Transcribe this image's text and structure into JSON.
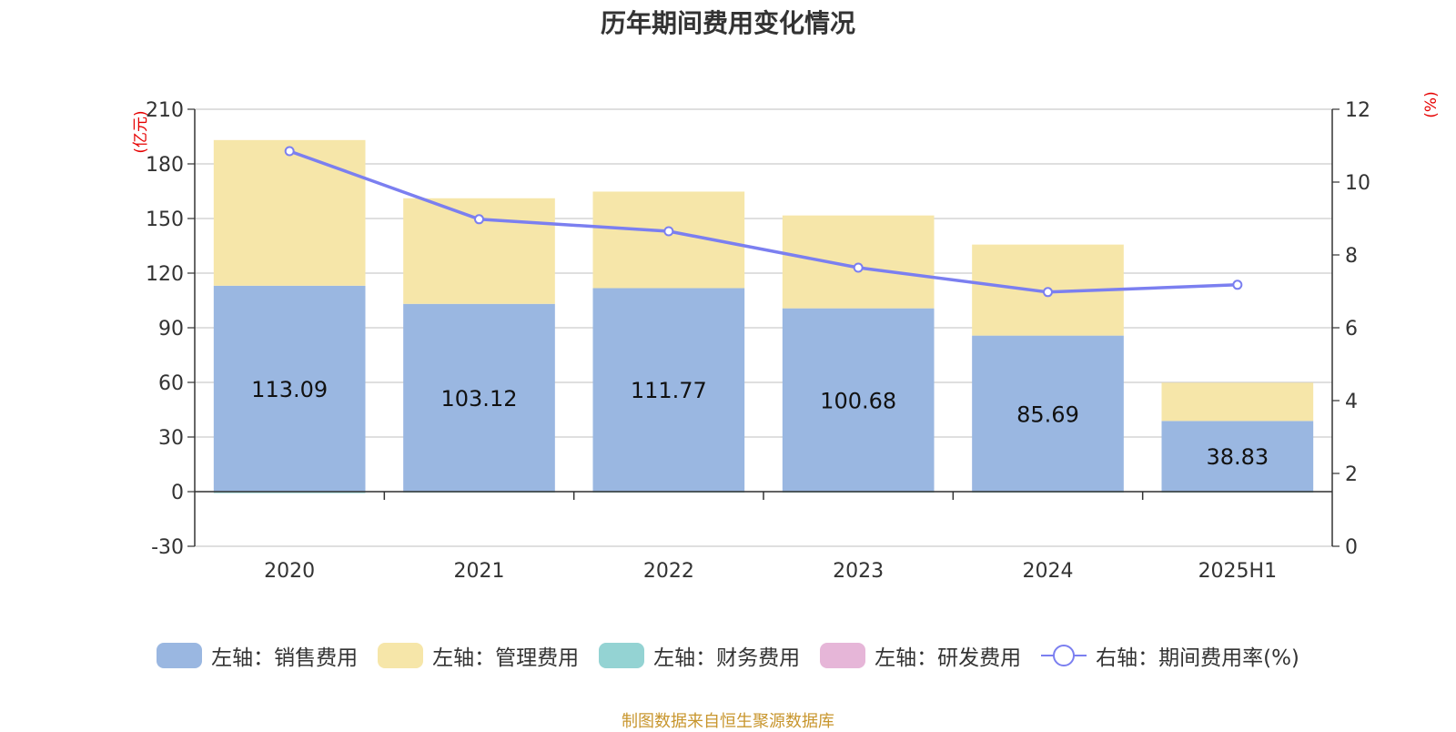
{
  "title": "历年期间费用变化情况",
  "source": "制图数据来自恒生聚源数据库",
  "colors": {
    "sales": "#9ab7e1",
    "admin": "#f6e6a9",
    "finance": "#94d3d3",
    "rd": "#e6b6d8",
    "line": "#7b7ff0",
    "grid": "#cccccc",
    "unit": "#e60000"
  },
  "legend": [
    {
      "label": "左轴：销售费用",
      "color": "#9ab7e1",
      "kind": "bar"
    },
    {
      "label": "左轴：管理费用",
      "color": "#f6e6a9",
      "kind": "bar"
    },
    {
      "label": "左轴：财务费用",
      "color": "#94d3d3",
      "kind": "bar"
    },
    {
      "label": "左轴：研发费用",
      "color": "#e6b6d8",
      "kind": "bar"
    },
    {
      "label": "右轴：期间费用率(%)",
      "color": "#7b7ff0",
      "kind": "line"
    }
  ],
  "chart_data": {
    "type": "bar",
    "title": "历年期间费用变化情况",
    "categories": [
      "2020",
      "2021",
      "2022",
      "2023",
      "2024",
      "2025H1"
    ],
    "left_axis": {
      "unit": "(亿元)",
      "range": [
        -30,
        210
      ],
      "ticks": [
        -30,
        0,
        30,
        60,
        90,
        120,
        150,
        180,
        210
      ]
    },
    "right_axis": {
      "unit": "(%)",
      "range": [
        0,
        12
      ],
      "ticks": [
        0,
        2,
        4,
        6,
        8,
        10,
        12
      ]
    },
    "grid": true,
    "legend_position": "bottom",
    "series": [
      {
        "name": "左轴：销售费用",
        "axis": "left",
        "type": "bar",
        "stack": "total",
        "values": [
          113.09,
          103.12,
          111.77,
          100.68,
          85.69,
          38.83
        ],
        "data_labels": [
          "113.09",
          "103.12",
          "111.77",
          "100.68",
          "85.69",
          "38.83"
        ]
      },
      {
        "name": "左轴：管理费用",
        "axis": "left",
        "type": "bar",
        "stack": "total",
        "values": [
          80,
          58,
          53,
          51,
          50,
          21
        ]
      },
      {
        "name": "左轴：财务费用",
        "axis": "left",
        "type": "bar",
        "stack": "total",
        "values": [
          -0.8,
          -0.3,
          -0.2,
          -0.2,
          -0.2,
          -0.1
        ]
      },
      {
        "name": "左轴：研发费用",
        "axis": "left",
        "type": "bar",
        "stack": "total",
        "values": [
          0,
          0,
          0,
          0,
          0,
          0
        ]
      },
      {
        "name": "右轴：期间费用率(%)",
        "axis": "right",
        "type": "line",
        "values": [
          10.85,
          8.98,
          8.65,
          7.65,
          6.98,
          7.18
        ]
      }
    ]
  }
}
